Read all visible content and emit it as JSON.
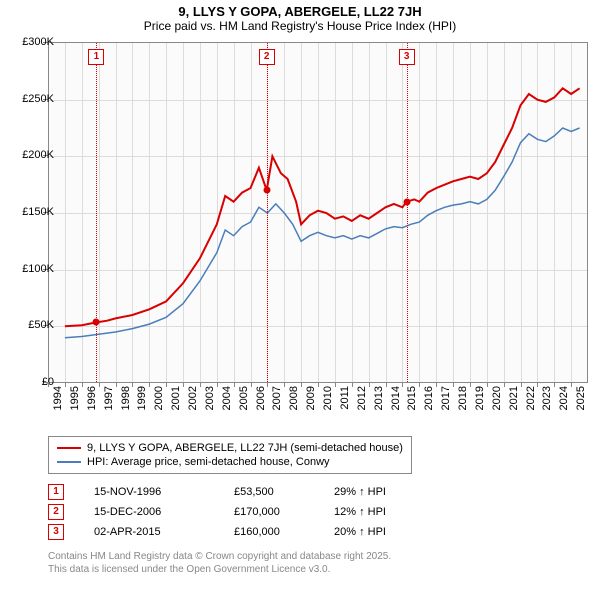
{
  "title": "9, LLYS Y GOPA, ABERGELE, LL22 7JH",
  "subtitle": "Price paid vs. HM Land Registry's House Price Index (HPI)",
  "chart": {
    "type": "line",
    "background_color": "#fbfbfb",
    "grid_color": "#dcdcdc",
    "border_color": "#888888",
    "x_min": 1994,
    "x_max": 2026,
    "y_min": 0,
    "y_max": 300000,
    "y_ticks": [
      0,
      50000,
      100000,
      150000,
      200000,
      250000,
      300000
    ],
    "y_tick_labels": [
      "£0",
      "£50K",
      "£100K",
      "£150K",
      "£200K",
      "£250K",
      "£300K"
    ],
    "x_ticks": [
      1994,
      1995,
      1996,
      1997,
      1998,
      1999,
      2000,
      2001,
      2002,
      2003,
      2004,
      2005,
      2006,
      2007,
      2008,
      2009,
      2010,
      2011,
      2012,
      2013,
      2014,
      2015,
      2016,
      2017,
      2018,
      2019,
      2020,
      2021,
      2022,
      2023,
      2024,
      2025
    ],
    "tick_fontsize": 11,
    "title_fontsize": 13
  },
  "series": [
    {
      "name": "9, LLYS Y GOPA, ABERGELE, LL22 7JH (semi-detached house)",
      "color": "#d80000",
      "width": 2,
      "points": [
        [
          1995.0,
          50000
        ],
        [
          1996.0,
          51000
        ],
        [
          1996.87,
          53500
        ],
        [
          1997.5,
          55000
        ],
        [
          1998.0,
          57000
        ],
        [
          1999.0,
          60000
        ],
        [
          2000.0,
          65000
        ],
        [
          2001.0,
          72000
        ],
        [
          2002.0,
          88000
        ],
        [
          2003.0,
          110000
        ],
        [
          2004.0,
          140000
        ],
        [
          2004.5,
          165000
        ],
        [
          2005.0,
          160000
        ],
        [
          2005.5,
          168000
        ],
        [
          2006.0,
          172000
        ],
        [
          2006.5,
          190000
        ],
        [
          2006.96,
          170000
        ],
        [
          2007.3,
          200000
        ],
        [
          2007.8,
          185000
        ],
        [
          2008.2,
          180000
        ],
        [
          2008.7,
          160000
        ],
        [
          2009.0,
          140000
        ],
        [
          2009.5,
          148000
        ],
        [
          2010.0,
          152000
        ],
        [
          2010.5,
          150000
        ],
        [
          2011.0,
          145000
        ],
        [
          2011.5,
          147000
        ],
        [
          2012.0,
          143000
        ],
        [
          2012.5,
          148000
        ],
        [
          2013.0,
          145000
        ],
        [
          2013.5,
          150000
        ],
        [
          2014.0,
          155000
        ],
        [
          2014.5,
          158000
        ],
        [
          2015.0,
          155000
        ],
        [
          2015.25,
          160000
        ],
        [
          2015.7,
          162000
        ],
        [
          2016.0,
          160000
        ],
        [
          2016.5,
          168000
        ],
        [
          2017.0,
          172000
        ],
        [
          2017.5,
          175000
        ],
        [
          2018.0,
          178000
        ],
        [
          2018.5,
          180000
        ],
        [
          2019.0,
          182000
        ],
        [
          2019.5,
          180000
        ],
        [
          2020.0,
          185000
        ],
        [
          2020.5,
          195000
        ],
        [
          2021.0,
          210000
        ],
        [
          2021.5,
          225000
        ],
        [
          2022.0,
          245000
        ],
        [
          2022.5,
          255000
        ],
        [
          2023.0,
          250000
        ],
        [
          2023.5,
          248000
        ],
        [
          2024.0,
          252000
        ],
        [
          2024.5,
          260000
        ],
        [
          2025.0,
          255000
        ],
        [
          2025.5,
          260000
        ]
      ]
    },
    {
      "name": "HPI: Average price, semi-detached house, Conwy",
      "color": "#4a7ebb",
      "width": 1.5,
      "points": [
        [
          1995.0,
          40000
        ],
        [
          1996.0,
          41000
        ],
        [
          1997.0,
          43000
        ],
        [
          1998.0,
          45000
        ],
        [
          1999.0,
          48000
        ],
        [
          2000.0,
          52000
        ],
        [
          2001.0,
          58000
        ],
        [
          2002.0,
          70000
        ],
        [
          2003.0,
          90000
        ],
        [
          2004.0,
          115000
        ],
        [
          2004.5,
          135000
        ],
        [
          2005.0,
          130000
        ],
        [
          2005.5,
          138000
        ],
        [
          2006.0,
          142000
        ],
        [
          2006.5,
          155000
        ],
        [
          2007.0,
          150000
        ],
        [
          2007.5,
          158000
        ],
        [
          2008.0,
          150000
        ],
        [
          2008.5,
          140000
        ],
        [
          2009.0,
          125000
        ],
        [
          2009.5,
          130000
        ],
        [
          2010.0,
          133000
        ],
        [
          2010.5,
          130000
        ],
        [
          2011.0,
          128000
        ],
        [
          2011.5,
          130000
        ],
        [
          2012.0,
          127000
        ],
        [
          2012.5,
          130000
        ],
        [
          2013.0,
          128000
        ],
        [
          2013.5,
          132000
        ],
        [
          2014.0,
          136000
        ],
        [
          2014.5,
          138000
        ],
        [
          2015.0,
          137000
        ],
        [
          2015.5,
          140000
        ],
        [
          2016.0,
          142000
        ],
        [
          2016.5,
          148000
        ],
        [
          2017.0,
          152000
        ],
        [
          2017.5,
          155000
        ],
        [
          2018.0,
          157000
        ],
        [
          2018.5,
          158000
        ],
        [
          2019.0,
          160000
        ],
        [
          2019.5,
          158000
        ],
        [
          2020.0,
          162000
        ],
        [
          2020.5,
          170000
        ],
        [
          2021.0,
          182000
        ],
        [
          2021.5,
          195000
        ],
        [
          2022.0,
          212000
        ],
        [
          2022.5,
          220000
        ],
        [
          2023.0,
          215000
        ],
        [
          2023.5,
          213000
        ],
        [
          2024.0,
          218000
        ],
        [
          2024.5,
          225000
        ],
        [
          2025.0,
          222000
        ],
        [
          2025.5,
          225000
        ]
      ]
    }
  ],
  "markers": [
    {
      "n": "1",
      "x": 1996.87,
      "y": 53500,
      "color": "#d80000"
    },
    {
      "n": "2",
      "x": 2006.96,
      "y": 170000,
      "color": "#d80000"
    },
    {
      "n": "3",
      "x": 2015.25,
      "y": 160000,
      "color": "#d80000"
    }
  ],
  "legend": {
    "items": [
      {
        "label": "9, LLYS Y GOPA, ABERGELE, LL22 7JH (semi-detached house)",
        "color": "#d80000"
      },
      {
        "label": "HPI: Average price, semi-detached house, Conwy",
        "color": "#4a7ebb"
      }
    ]
  },
  "transactions": [
    {
      "n": "1",
      "date": "15-NOV-1996",
      "price": "£53,500",
      "hpi": "29% ↑ HPI"
    },
    {
      "n": "2",
      "date": "15-DEC-2006",
      "price": "£170,000",
      "hpi": "12% ↑ HPI"
    },
    {
      "n": "3",
      "date": "02-APR-2015",
      "price": "£160,000",
      "hpi": "20% ↑ HPI"
    }
  ],
  "footer": {
    "line1": "Contains HM Land Registry data © Crown copyright and database right 2025.",
    "line2": "This data is licensed under the Open Government Licence v3.0."
  }
}
